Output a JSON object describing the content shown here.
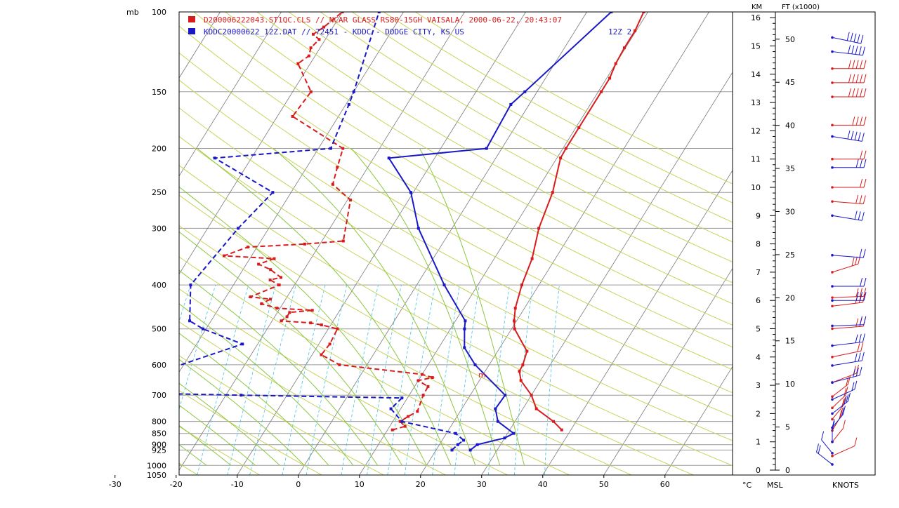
{
  "chart_data": {
    "type": "skew-t",
    "legend": [
      {
        "text": "D200006222043.ST1QC.CLS // NCAR GLASS RS80-15GH VAISALA,  2000-06-22, 20:43:07",
        "color": "#d81c1c"
      },
      {
        "text": "KDDC20000622_12Z.DAT // 72451 - KDDC - DODGE CITY, KS US",
        "color": "#1818c8",
        "extra": "12Z  2"
      }
    ],
    "xlabel": "°C",
    "ylabel": "mb",
    "xlim": [
      -30,
      60
    ],
    "xticks": [
      -30,
      -20,
      -10,
      0,
      10,
      20,
      30,
      40,
      50,
      60
    ],
    "pticks": [
      100,
      150,
      200,
      250,
      300,
      400,
      500,
      600,
      700,
      800,
      850,
      900,
      925,
      1000,
      1050
    ],
    "height_axis": {
      "km_label": "KM",
      "ft_label": "FT (x1000)",
      "msl_label": "MSL",
      "knots_label": "KNOTS",
      "km_ticks": [
        0,
        1,
        2,
        3,
        4,
        5,
        6,
        7,
        8,
        9,
        10,
        11,
        12,
        13,
        14,
        15,
        16
      ],
      "ft_ticks": [
        0,
        5,
        10,
        15,
        20,
        25,
        30,
        35,
        40,
        45,
        50
      ]
    },
    "series": [
      {
        "name": "D200006222043.ST1QC.CLS",
        "color": "#d81c1c",
        "kind": "temperature",
        "points": [
          [
            835,
            38.5
          ],
          [
            800,
            36.3
          ],
          [
            750,
            32.2
          ],
          [
            700,
            30.0
          ],
          [
            650,
            26.8
          ],
          [
            620,
            25.6
          ],
          [
            600,
            25.5
          ],
          [
            560,
            24.8
          ],
          [
            500,
            20.5
          ],
          [
            480,
            19.6
          ],
          [
            450,
            18.5
          ],
          [
            400,
            17.2
          ],
          [
            350,
            16.2
          ],
          [
            300,
            14.2
          ],
          [
            250,
            12.8
          ],
          [
            210,
            10.6
          ],
          [
            200,
            10.5
          ],
          [
            180,
            10.5
          ],
          [
            150,
            10.5
          ],
          [
            140,
            10.5
          ],
          [
            130,
            10.0
          ],
          [
            120,
            9.8
          ],
          [
            110,
            9.8
          ],
          [
            100,
            9.3
          ]
        ]
      },
      {
        "name": "D200006222043.ST1QC.CLS",
        "color": "#d81c1c",
        "kind": "dewpoint",
        "points": [
          [
            835,
            10.8
          ],
          [
            820,
            12.5
          ],
          [
            800,
            11.2
          ],
          [
            780,
            12.0
          ],
          [
            760,
            13.0
          ],
          [
            700,
            12.3
          ],
          [
            670,
            12.2
          ],
          [
            650,
            10.0
          ],
          [
            640,
            12.0
          ],
          [
            630,
            10.0
          ],
          [
            600,
            -4.5
          ],
          [
            570,
            -8.5
          ],
          [
            540,
            -8.2
          ],
          [
            500,
            -8.5
          ],
          [
            490,
            -11.5
          ],
          [
            485,
            -13.5
          ],
          [
            480,
            -18.5
          ],
          [
            470,
            -18.0
          ],
          [
            460,
            -18.0
          ],
          [
            455,
            -14.5
          ],
          [
            450,
            -20.5
          ],
          [
            440,
            -23.5
          ],
          [
            430,
            -22.5
          ],
          [
            425,
            -26.0
          ],
          [
            400,
            -22.5
          ],
          [
            390,
            -24.5
          ],
          [
            385,
            -23.0
          ],
          [
            370,
            -25.5
          ],
          [
            360,
            -28.0
          ],
          [
            350,
            -26.0
          ],
          [
            345,
            -34.5
          ],
          [
            330,
            -31.5
          ],
          [
            325,
            -22.5
          ],
          [
            320,
            -16.5
          ],
          [
            260,
            -19.5
          ],
          [
            240,
            -24.0
          ],
          [
            220,
            -25.0
          ],
          [
            200,
            -26.0
          ],
          [
            170,
            -37.5
          ],
          [
            150,
            -37.0
          ],
          [
            130,
            -42.0
          ],
          [
            125,
            -41.0
          ],
          [
            120,
            -41.5
          ],
          [
            115,
            -41.0
          ],
          [
            112,
            -42.5
          ],
          [
            108,
            -41.5
          ],
          [
            100,
            -40.0
          ]
        ]
      },
      {
        "name": "KDDC20000622_12Z.DAT",
        "color": "#1818c8",
        "kind": "temperature",
        "points": [
          [
            925,
            25.6
          ],
          [
            900,
            26.2
          ],
          [
            870,
            30.0
          ],
          [
            850,
            31.0
          ],
          [
            800,
            27.2
          ],
          [
            750,
            25.5
          ],
          [
            700,
            25.7
          ],
          [
            600,
            17.7
          ],
          [
            550,
            14.2
          ],
          [
            500,
            12.3
          ],
          [
            480,
            11.6
          ],
          [
            400,
            4.5
          ],
          [
            300,
            -5.5
          ],
          [
            250,
            -10.4
          ],
          [
            210,
            -17.5
          ],
          [
            200,
            -2.5
          ],
          [
            160,
            -3.0
          ],
          [
            150,
            -2.0
          ],
          [
            100,
            4.0
          ]
        ]
      },
      {
        "name": "KDDC20000622_12Z.DAT",
        "color": "#1818c8",
        "kind": "dewpoint",
        "points": [
          [
            925,
            22.6
          ],
          [
            900,
            23.0
          ],
          [
            880,
            23.5
          ],
          [
            850,
            21.5
          ],
          [
            800,
            11.5
          ],
          [
            750,
            8.4
          ],
          [
            710,
            9.1
          ],
          [
            700,
            -17.5
          ],
          [
            690,
            -41.0
          ],
          [
            540,
            -22.5
          ],
          [
            500,
            -30.5
          ],
          [
            480,
            -33.5
          ],
          [
            400,
            -37.0
          ],
          [
            300,
            -35.0
          ],
          [
            250,
            -33.0
          ],
          [
            210,
            -46.0
          ],
          [
            200,
            -28.0
          ],
          [
            160,
            -29.5
          ],
          [
            150,
            -30.0
          ],
          [
            100,
            -34.0
          ]
        ]
      }
    ],
    "annotations": [
      {
        "text": "m",
        "pressure": 640,
        "temperature": 19.5,
        "color": "#d81c1c"
      }
    ],
    "wind_barbs": [
      {
        "series": "D200006222043.ST1QC.CLS",
        "color": "#d81c1c",
        "barbs": [
          [
            0.5,
            225,
            12
          ],
          [
            1.0,
            200,
            15
          ],
          [
            1.4,
            195,
            20
          ],
          [
            1.8,
            200,
            20
          ],
          [
            2.2,
            205,
            20
          ],
          [
            2.6,
            210,
            20
          ],
          [
            3.1,
            230,
            20
          ],
          [
            4.0,
            245,
            25
          ],
          [
            5.0,
            260,
            30
          ],
          [
            5.8,
            255,
            30
          ],
          [
            6.1,
            265,
            35
          ],
          [
            7.0,
            235,
            30
          ],
          [
            9.5,
            280,
            35
          ],
          [
            10.0,
            270,
            25
          ],
          [
            11.0,
            270,
            25
          ],
          [
            12.2,
            270,
            40
          ],
          [
            13.2,
            270,
            50
          ],
          [
            13.7,
            270,
            50
          ],
          [
            14.2,
            270,
            60
          ]
        ]
      },
      {
        "series": "KDDC20000622_12Z.DAT",
        "color": "#1818c8",
        "barbs": [
          [
            0.2,
            150,
            20
          ],
          [
            0.6,
            160,
            15
          ],
          [
            1.0,
            180,
            20
          ],
          [
            1.5,
            200,
            25
          ],
          [
            2.0,
            210,
            30
          ],
          [
            2.5,
            225,
            25
          ],
          [
            3.1,
            240,
            30
          ],
          [
            3.7,
            250,
            30
          ],
          [
            4.4,
            255,
            30
          ],
          [
            5.1,
            265,
            25
          ],
          [
            6.0,
            270,
            30
          ],
          [
            6.5,
            270,
            25
          ],
          [
            7.6,
            280,
            25
          ],
          [
            9.0,
            290,
            30
          ],
          [
            10.7,
            270,
            35
          ],
          [
            11.8,
            290,
            50
          ],
          [
            14.8,
            285,
            60
          ],
          [
            15.3,
            295,
            50
          ]
        ]
      }
    ],
    "grid": true
  }
}
